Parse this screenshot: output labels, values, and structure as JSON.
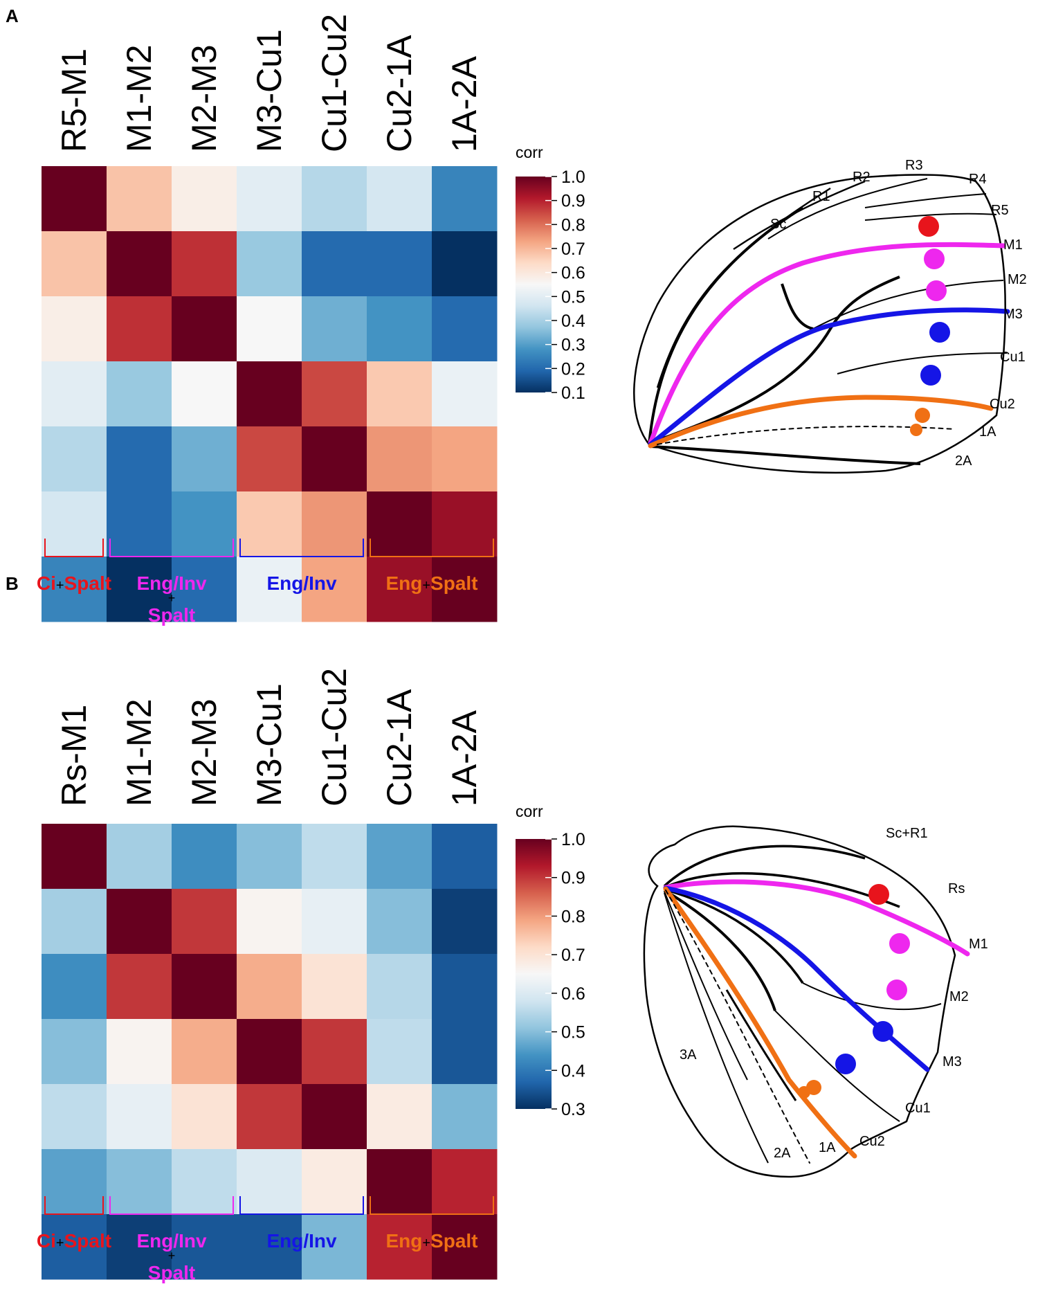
{
  "colors": {
    "red": "#e8141c",
    "magenta": "#ee27ee",
    "blue": "#1515e6",
    "orange": "#f07014",
    "cmap": [
      "#053061",
      "#2166ac",
      "#4393c3",
      "#92c5de",
      "#d1e5f0",
      "#f7f7f7",
      "#fddbc7",
      "#f4a582",
      "#d6604d",
      "#b2182b",
      "#67001f"
    ]
  },
  "chart_data": [
    {
      "type": "heatmap",
      "panel": "A",
      "columns": [
        "R5-M1",
        "M1-M2",
        "M2-M3",
        "M3-Cu1",
        "Cu1-Cu2",
        "Cu2-1A",
        "1A-2A"
      ],
      "colorbar": {
        "title": "corr",
        "range": [
          0.1,
          1.0
        ],
        "ticks": [
          "1.0",
          "0.9",
          "0.8",
          "0.7",
          "0.6",
          "0.5",
          "0.4",
          "0.3",
          "0.2",
          "0.1"
        ]
      },
      "values": [
        [
          1.0,
          0.68,
          0.58,
          0.5,
          0.42,
          0.47,
          0.25
        ],
        [
          0.68,
          1.0,
          0.88,
          0.38,
          0.2,
          0.2,
          0.1
        ],
        [
          0.58,
          0.88,
          1.0,
          0.55,
          0.33,
          0.28,
          0.2
        ],
        [
          0.5,
          0.38,
          0.55,
          1.0,
          0.85,
          0.67,
          0.52
        ],
        [
          0.42,
          0.2,
          0.33,
          0.85,
          1.0,
          0.75,
          0.73
        ],
        [
          0.47,
          0.2,
          0.28,
          0.67,
          0.75,
          1.0,
          0.94
        ],
        [
          0.25,
          0.1,
          0.2,
          0.52,
          0.73,
          0.94,
          1.0
        ]
      ],
      "groups": [
        {
          "lines": [
            "Ci",
            "+",
            "Spalt"
          ]
        },
        {
          "lines": [
            "Eng/Inv",
            "+",
            "Spalt"
          ]
        },
        {
          "lines": [
            "Eng/Inv"
          ]
        },
        {
          "lines": [
            "Eng",
            "+",
            "Spalt"
          ]
        }
      ],
      "wing_labels": [
        "Sc",
        "R1",
        "R2",
        "R3",
        "R4",
        "R5",
        "M1",
        "M2",
        "M3",
        "Cu1",
        "Cu2",
        "1A",
        "2A"
      ]
    },
    {
      "type": "heatmap",
      "panel": "B",
      "columns": [
        "Rs-M1",
        "M1-M2",
        "M2-M3",
        "M3-Cu1",
        "Cu1-Cu2",
        "Cu2-1A",
        "1A-2A"
      ],
      "colorbar": {
        "title": "corr",
        "range": [
          0.3,
          1.0
        ],
        "ticks": [
          "1.0",
          "0.9",
          "0.8",
          "0.7",
          "0.6",
          "0.5",
          "0.4",
          "0.3"
        ]
      },
      "values": [
        [
          1.0,
          0.53,
          0.43,
          0.5,
          0.56,
          0.46,
          0.36
        ],
        [
          0.53,
          1.0,
          0.9,
          0.66,
          0.62,
          0.5,
          0.32
        ],
        [
          0.43,
          0.9,
          1.0,
          0.78,
          0.7,
          0.55,
          0.35
        ],
        [
          0.5,
          0.66,
          0.78,
          1.0,
          0.9,
          0.56,
          0.35
        ],
        [
          0.56,
          0.62,
          0.7,
          0.9,
          1.0,
          0.68,
          0.49
        ],
        [
          0.46,
          0.5,
          0.56,
          0.6,
          0.68,
          1.0,
          0.92
        ],
        [
          0.36,
          0.32,
          0.35,
          0.35,
          0.49,
          0.92,
          1.0
        ]
      ],
      "groups": [
        {
          "lines": [
            "Ci",
            "+",
            "Spalt"
          ]
        },
        {
          "lines": [
            "Eng/Inv",
            "+",
            "Spalt"
          ]
        },
        {
          "lines": [
            "Eng/Inv"
          ]
        },
        {
          "lines": [
            "Eng",
            "+",
            "Spalt"
          ]
        }
      ],
      "wing_labels": [
        "Sc+R1",
        "Rs",
        "M1",
        "M2",
        "M3",
        "Cu1",
        "Cu2",
        "3A",
        "2A",
        "1A"
      ]
    }
  ]
}
